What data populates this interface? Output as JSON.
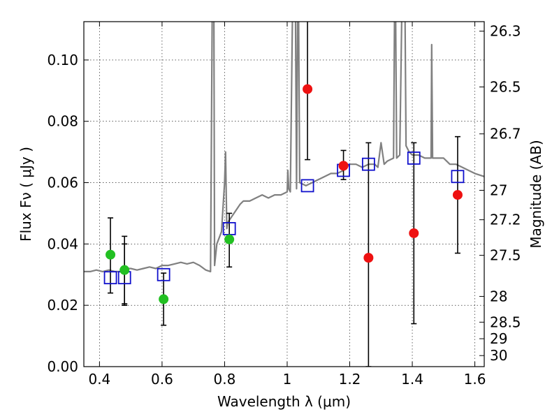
{
  "chart_data": {
    "type": "scatter",
    "xlabel": "Wavelength  λ (μm)",
    "ylabel": "Flux  Fν  ( μJy )",
    "y2label": "Magnitude (AB)",
    "xlim": [
      0.35,
      1.63
    ],
    "ylim": [
      0.0,
      0.1125
    ],
    "grid": true,
    "x_ticks": [
      0.4,
      0.6,
      0.8,
      1.0,
      1.2,
      1.4,
      1.6
    ],
    "x_tick_labels": [
      "0.4",
      "0.6",
      "0.8",
      "1",
      "1.2",
      "1.4",
      "1.6"
    ],
    "y_ticks": [
      0.0,
      0.02,
      0.04,
      0.06,
      0.08,
      0.1
    ],
    "y_tick_labels": [
      "0.00",
      "0.02",
      "0.04",
      "0.06",
      "0.08",
      "0.10"
    ],
    "y2_ticks": [
      {
        "label": "26.3",
        "flux": 0.1094
      },
      {
        "label": "26.5",
        "flux": 0.0912
      },
      {
        "label": "26.7",
        "flux": 0.0759
      },
      {
        "label": "27",
        "flux": 0.0575
      },
      {
        "label": "27.2",
        "flux": 0.0479
      },
      {
        "label": "27.5",
        "flux": 0.0363
      },
      {
        "label": "28",
        "flux": 0.0229
      },
      {
        "label": "28.5",
        "flux": 0.0145
      },
      {
        "label": "29",
        "flux": 0.0091
      },
      {
        "label": "30",
        "flux": 0.0036
      }
    ],
    "series": [
      {
        "color": "#808080",
        "kind": "line",
        "x": [
          0.35,
          0.37,
          0.39,
          0.41,
          0.43,
          0.45,
          0.47,
          0.49,
          0.5,
          0.52,
          0.54,
          0.56,
          0.58,
          0.6,
          0.62,
          0.64,
          0.66,
          0.68,
          0.7,
          0.72,
          0.74,
          0.755,
          0.762,
          0.765,
          0.768,
          0.775,
          0.79,
          0.8,
          0.803,
          0.807,
          0.81,
          0.83,
          0.85,
          0.86,
          0.88,
          0.9,
          0.92,
          0.94,
          0.96,
          0.98,
          1.0,
          1.002,
          1.005,
          1.01,
          1.02,
          1.025,
          1.03,
          1.035,
          1.04,
          1.06,
          1.08,
          1.1,
          1.12,
          1.14,
          1.16,
          1.18,
          1.2,
          1.22,
          1.24,
          1.26,
          1.28,
          1.29,
          1.3,
          1.31,
          1.32,
          1.34,
          1.345,
          1.35,
          1.36,
          1.37,
          1.375,
          1.38,
          1.39,
          1.4,
          1.42,
          1.44,
          1.46,
          1.462,
          1.465,
          1.47,
          1.5,
          1.52,
          1.54,
          1.56,
          1.58,
          1.6,
          1.63
        ],
        "y": [
          0.031,
          0.031,
          0.0315,
          0.031,
          0.0315,
          0.031,
          0.031,
          0.032,
          0.032,
          0.0315,
          0.032,
          0.0325,
          0.032,
          0.033,
          0.033,
          0.0335,
          0.034,
          0.0335,
          0.034,
          0.033,
          0.0315,
          0.031,
          0.14,
          0.14,
          0.033,
          0.04,
          0.044,
          0.06,
          0.07,
          0.045,
          0.047,
          0.05,
          0.053,
          0.054,
          0.054,
          0.055,
          0.056,
          0.055,
          0.056,
          0.056,
          0.057,
          0.064,
          0.058,
          0.057,
          0.14,
          0.14,
          0.058,
          0.14,
          0.06,
          0.059,
          0.06,
          0.061,
          0.062,
          0.063,
          0.063,
          0.064,
          0.066,
          0.066,
          0.065,
          0.066,
          0.066,
          0.065,
          0.073,
          0.066,
          0.067,
          0.068,
          0.14,
          0.068,
          0.069,
          0.14,
          0.14,
          0.072,
          0.07,
          0.069,
          0.069,
          0.068,
          0.068,
          0.105,
          0.068,
          0.068,
          0.068,
          0.066,
          0.066,
          0.065,
          0.064,
          0.063,
          0.062
        ]
      },
      {
        "color": "#1010cc",
        "kind": "open-square",
        "x": [
          0.435,
          0.48,
          0.605,
          0.815,
          1.065,
          1.18,
          1.26,
          1.405,
          1.545
        ],
        "y": [
          0.029,
          0.029,
          0.03,
          0.045,
          0.059,
          0.064,
          0.066,
          0.068,
          0.062
        ]
      },
      {
        "color": "#22c022",
        "kind": "filled-circle",
        "x": [
          0.435,
          0.48,
          0.605,
          0.815
        ],
        "y": [
          0.0365,
          0.0315,
          0.022,
          0.0415
        ],
        "err_low": [
          0.0125,
          0.011,
          0.0085,
          0.009
        ],
        "err_high": [
          0.012,
          0.011,
          0.0085,
          0.0085
        ],
        "extra_bars": [
          {
            "x": 0.48,
            "low": 0.02,
            "high": 0.04
          }
        ]
      },
      {
        "color": "#ee1111",
        "kind": "filled-circle",
        "x": [
          1.065,
          1.18,
          1.26,
          1.405,
          1.545
        ],
        "y": [
          0.0905,
          0.0655,
          0.0355,
          0.0435,
          0.056
        ],
        "err_low": [
          0.023,
          0.0045,
          0.0355,
          0.0295,
          0.019
        ],
        "err_high": [
          0.0255,
          0.005,
          0.0375,
          0.0295,
          0.019
        ]
      }
    ]
  }
}
